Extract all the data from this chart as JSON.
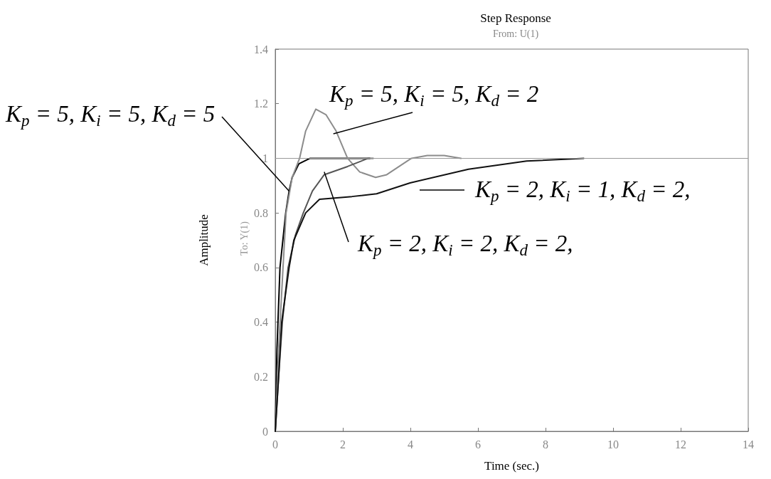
{
  "chart_data": {
    "type": "line",
    "title": "Step Response",
    "subtitle": "From: U(1)",
    "xlabel": "Time (sec.)",
    "ylabel": "Amplitude",
    "xlim": [
      0,
      14
    ],
    "xticks": [
      0,
      2,
      4,
      6,
      8,
      10,
      12,
      14
    ],
    "ylim": [
      0,
      1.4
    ],
    "yticks": [
      0,
      0.2,
      0.4,
      0.6,
      0.8,
      1,
      1.2,
      1.4
    ],
    "grid": false,
    "marker": "none",
    "line_style": "solid",
    "series": [
      {
        "color": "#000000",
        "x": [
          0,
          0.05,
          0.14,
          0.31,
          0.41,
          0.5,
          0.7,
          1.03,
          2.8
        ],
        "values": [
          0,
          0.3,
          0.6,
          0.8,
          0.88,
          0.93,
          0.98,
          1.0,
          1.0
        ]
      },
      {
        "color": "#8c8c8c",
        "x": [
          0,
          0.1,
          0.23,
          0.32,
          0.5,
          0.72,
          0.9,
          1.2,
          1.5,
          1.8,
          2.14,
          2.5,
          2.97,
          3.3,
          4.03,
          4.5,
          5.0,
          5.5
        ],
        "values": [
          0,
          0.3,
          0.6,
          0.8,
          0.93,
          1.0,
          1.1,
          1.18,
          1.16,
          1.1,
          1.0,
          0.95,
          0.93,
          0.94,
          1.0,
          1.01,
          1.01,
          1.0
        ]
      },
      {
        "color": "#555555",
        "x": [
          0,
          0.1,
          0.21,
          0.38,
          0.6,
          0.83,
          1.1,
          1.45,
          2.14,
          2.75,
          2.9
        ],
        "values": [
          0,
          0.2,
          0.4,
          0.6,
          0.72,
          0.8,
          0.88,
          0.94,
          0.97,
          1.0,
          1.0
        ]
      },
      {
        "color": "#111111",
        "x": [
          0,
          0.1,
          0.19,
          0.41,
          0.55,
          0.9,
          1.31,
          2.27,
          3.0,
          3.99,
          5.72,
          7.44,
          9.13
        ],
        "values": [
          0,
          0.2,
          0.4,
          0.6,
          0.7,
          0.8,
          0.85,
          0.86,
          0.87,
          0.91,
          0.96,
          0.99,
          1.0
        ]
      }
    ],
    "ref_lines": [
      {
        "axis": "y",
        "value": 1,
        "color": "#999999"
      }
    ],
    "annotations": [
      "To: Y(1)",
      {
        "text": "K$_{p}$ = 5, K$_{i}$ = 5, K$_{d}$ = 5",
        "x": 0.41,
        "y": 0.88
      },
      {
        "text": "K$_{p}$ = 5, K$_{i}$ = 5, K$_{d}$ = 2",
        "x": 1.72,
        "y": 1.09
      },
      "K$_{p}$ = 2, K$_{i}$ = 1, K$_{d}$ = 2,",
      {
        "text": "K$_{p}$ = 2, K$_{i}$ = 2, K$_{d}$ = 2,",
        "x": 1.45,
        "y": 0.95
      }
    ]
  }
}
